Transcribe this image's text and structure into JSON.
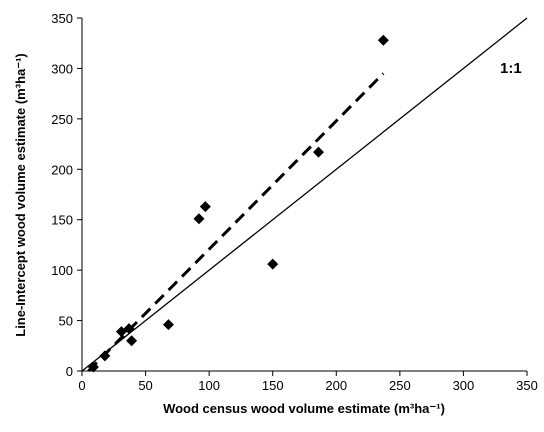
{
  "chart_data": {
    "type": "scatter",
    "title": "",
    "xlabel": "Wood census wood volume estimate (m³ha⁻¹)",
    "ylabel": "Line-Intercept wood volume estimate (m³ha⁻¹)",
    "xlim": [
      0,
      350
    ],
    "ylim": [
      0,
      350
    ],
    "x_ticks": [
      "0",
      "50",
      "100",
      "150",
      "200",
      "250",
      "300",
      "350"
    ],
    "y_ticks": [
      "0",
      "50",
      "100",
      "150",
      "200",
      "250",
      "300",
      "350"
    ],
    "grid": false,
    "legend": "none",
    "marker_color": "#000000",
    "series": [
      {
        "marker": "diamond",
        "points": [
          {
            "x": 9,
            "y": 4
          },
          {
            "x": 18,
            "y": 15
          },
          {
            "x": 31,
            "y": 39
          },
          {
            "x": 37,
            "y": 42
          },
          {
            "x": 39,
            "y": 30
          },
          {
            "x": 68,
            "y": 46
          },
          {
            "x": 92,
            "y": 151
          },
          {
            "x": 97,
            "y": 163
          },
          {
            "x": 150,
            "y": 106
          },
          {
            "x": 186,
            "y": 217
          },
          {
            "x": 237,
            "y": 328
          }
        ]
      }
    ],
    "lines": [
      {
        "style": "solid",
        "from": [
          0,
          0
        ],
        "to": [
          350,
          350
        ],
        "label": "1:1"
      },
      {
        "style": "dashed",
        "from": [
          5,
          0
        ],
        "to": [
          237,
          295
        ]
      }
    ]
  }
}
